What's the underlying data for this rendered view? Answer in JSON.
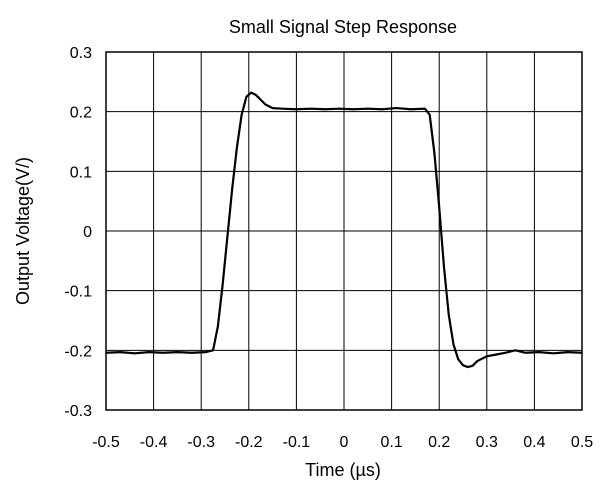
{
  "chart_data": {
    "type": "line",
    "title": "Small Signal Step Response",
    "xlabel": "Time (µs)",
    "ylabel": "Output Voltage(V/)",
    "xlim": [
      -0.5,
      0.5
    ],
    "ylim": [
      -0.3,
      0.3
    ],
    "x_ticks": [
      "-0.5",
      "-0.4",
      "-0.3",
      "-0.2",
      "-0.1",
      "0",
      "0.1",
      "0.2",
      "0.3",
      "0.4",
      "0.5"
    ],
    "y_ticks": [
      "0.3",
      "0.2",
      "0.1",
      "0",
      "-0.1",
      "-0.2",
      "-0.3"
    ],
    "grid": true,
    "legend": "none",
    "line_color": "#000000",
    "series": [
      {
        "x": [
          -0.5,
          -0.47,
          -0.44,
          -0.41,
          -0.38,
          -0.35,
          -0.32,
          -0.29,
          -0.275,
          -0.265,
          -0.255,
          -0.245,
          -0.235,
          -0.225,
          -0.215,
          -0.205,
          -0.195,
          -0.185,
          -0.175,
          -0.165,
          -0.15,
          -0.13,
          -0.1,
          -0.07,
          -0.04,
          -0.01,
          0.02,
          0.05,
          0.08,
          0.11,
          0.14,
          0.17,
          0.18,
          0.19,
          0.2,
          0.21,
          0.22,
          0.23,
          0.24,
          0.25,
          0.26,
          0.27,
          0.28,
          0.3,
          0.32,
          0.34,
          0.36,
          0.38,
          0.41,
          0.44,
          0.47,
          0.5
        ],
        "y": [
          -0.204,
          -0.203,
          -0.205,
          -0.203,
          -0.204,
          -0.203,
          -0.204,
          -0.203,
          -0.2,
          -0.16,
          -0.09,
          -0.01,
          0.07,
          0.14,
          0.195,
          0.225,
          0.232,
          0.228,
          0.22,
          0.212,
          0.206,
          0.205,
          0.204,
          0.205,
          0.204,
          0.205,
          0.204,
          0.205,
          0.204,
          0.206,
          0.204,
          0.205,
          0.195,
          0.13,
          0.04,
          -0.06,
          -0.14,
          -0.19,
          -0.215,
          -0.225,
          -0.228,
          -0.226,
          -0.218,
          -0.21,
          -0.207,
          -0.204,
          -0.2,
          -0.204,
          -0.203,
          -0.205,
          -0.203,
          -0.204
        ]
      }
    ]
  }
}
